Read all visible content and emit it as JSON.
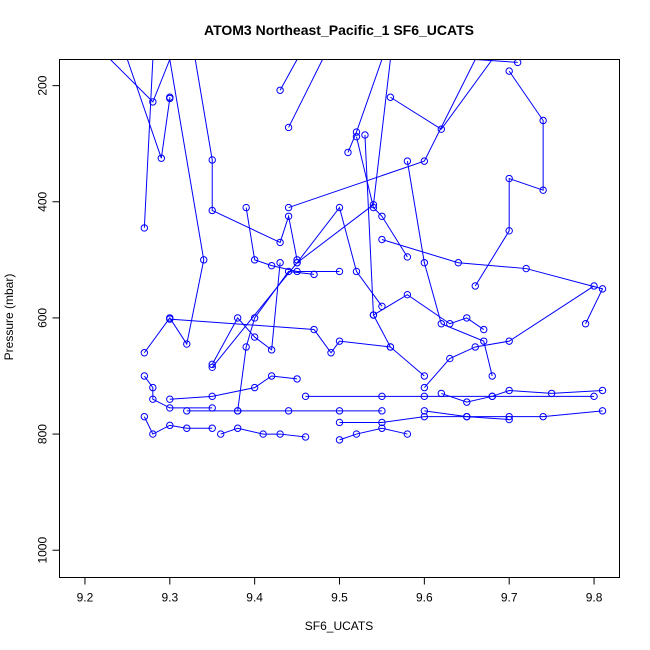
{
  "chart_data": {
    "type": "line",
    "title": "ATOM3 Northeast_Pacific_1 SF6_UCATS",
    "xlabel": "SF6_UCATS",
    "ylabel": "Pressure (mbar)",
    "xlim": [
      9.17,
      9.83
    ],
    "ylim": [
      1047,
      155
    ],
    "y_reversed": true,
    "x_ticks": [
      9.2,
      9.3,
      9.4,
      9.5,
      9.6,
      9.7,
      9.8
    ],
    "x_tick_labels": [
      "9.2",
      "9.3",
      "9.4",
      "9.5",
      "9.6",
      "9.7",
      "9.8"
    ],
    "y_ticks": [
      200,
      400,
      600,
      800,
      1000
    ],
    "y_tick_labels": [
      "200",
      "400",
      "600",
      "800",
      "1000"
    ],
    "grid": false,
    "legend": "none",
    "color": "#0000ff",
    "series": [
      {
        "points": [
          [
            9.23,
            155
          ],
          [
            9.28,
            228
          ],
          [
            9.3,
            155
          ]
        ]
      },
      {
        "points": [
          [
            9.25,
            155
          ],
          [
            9.29,
            325
          ],
          [
            9.3,
            222
          ],
          [
            9.3,
            220
          ]
        ]
      },
      {
        "points": [
          [
            9.27,
            445
          ],
          [
            9.28,
            155
          ]
        ]
      },
      {
        "points": [
          [
            9.33,
            155
          ],
          [
            9.35,
            328
          ],
          [
            9.35,
            415
          ],
          [
            9.43,
            470
          ],
          [
            9.44,
            425
          ],
          [
            9.45,
            500
          ]
        ]
      },
      {
        "points": [
          [
            9.27,
            660
          ],
          [
            9.3,
            600
          ],
          [
            9.32,
            645
          ],
          [
            9.34,
            500
          ],
          [
            9.3,
            155
          ]
        ]
      },
      {
        "points": [
          [
            9.27,
            700
          ],
          [
            9.28,
            720
          ],
          [
            9.28,
            740
          ],
          [
            9.3,
            755
          ],
          [
            9.35,
            755
          ]
        ]
      },
      {
        "points": [
          [
            9.27,
            770
          ],
          [
            9.28,
            800
          ],
          [
            9.3,
            785
          ],
          [
            9.32,
            790
          ],
          [
            9.35,
            790
          ]
        ]
      },
      {
        "points": [
          [
            9.3,
            602
          ],
          [
            9.47,
            620
          ],
          [
            9.49,
            660
          ],
          [
            9.5,
            640
          ],
          [
            9.56,
            650
          ]
        ]
      },
      {
        "points": [
          [
            9.35,
            680
          ],
          [
            9.38,
            600
          ],
          [
            9.4,
            633
          ],
          [
            9.42,
            655
          ],
          [
            9.43,
            505
          ]
        ]
      },
      {
        "points": [
          [
            9.35,
            685
          ],
          [
            9.45,
            505
          ],
          [
            9.5,
            410
          ],
          [
            9.52,
            520
          ],
          [
            9.55,
            580
          ]
        ]
      },
      {
        "points": [
          [
            9.3,
            740
          ],
          [
            9.35,
            735
          ],
          [
            9.4,
            720
          ],
          [
            9.42,
            700
          ],
          [
            9.45,
            705
          ]
        ]
      },
      {
        "points": [
          [
            9.32,
            760
          ],
          [
            9.38,
            760
          ],
          [
            9.44,
            760
          ],
          [
            9.5,
            760
          ],
          [
            9.55,
            760
          ]
        ]
      },
      {
        "points": [
          [
            9.36,
            800
          ],
          [
            9.38,
            790
          ],
          [
            9.41,
            800
          ],
          [
            9.43,
            800
          ],
          [
            9.46,
            805
          ]
        ]
      },
      {
        "points": [
          [
            9.38,
            760
          ],
          [
            9.39,
            650
          ],
          [
            9.4,
            600
          ],
          [
            9.44,
            520
          ],
          [
            9.47,
            525
          ]
        ]
      },
      {
        "points": [
          [
            9.39,
            410
          ],
          [
            9.4,
            500
          ],
          [
            9.42,
            510
          ],
          [
            9.45,
            520
          ],
          [
            9.5,
            520
          ]
        ]
      },
      {
        "points": [
          [
            9.43,
            208
          ],
          [
            9.45,
            155
          ]
        ]
      },
      {
        "points": [
          [
            9.44,
            272
          ],
          [
            9.48,
            155
          ]
        ]
      },
      {
        "points": [
          [
            9.44,
            410
          ],
          [
            9.6,
            330
          ],
          [
            9.66,
            155
          ],
          [
            9.71,
            160
          ]
        ]
      },
      {
        "points": [
          [
            9.45,
            505
          ],
          [
            9.54,
            405
          ],
          [
            9.56,
            155
          ],
          [
            9.58,
            155
          ]
        ]
      },
      {
        "points": [
          [
            9.46,
            735
          ],
          [
            9.55,
            735
          ],
          [
            9.6,
            735
          ],
          [
            9.68,
            735
          ],
          [
            9.8,
            735
          ]
        ]
      },
      {
        "points": [
          [
            9.5,
            810
          ],
          [
            9.52,
            800
          ],
          [
            9.55,
            790
          ],
          [
            9.58,
            800
          ]
        ]
      },
      {
        "points": [
          [
            9.5,
            780
          ],
          [
            9.55,
            780
          ],
          [
            9.6,
            770
          ],
          [
            9.65,
            770
          ],
          [
            9.7,
            775
          ]
        ]
      },
      {
        "points": [
          [
            9.51,
            315
          ],
          [
            9.52,
            280
          ],
          [
            9.55,
            155
          ],
          [
            9.6,
            155
          ]
        ]
      },
      {
        "points": [
          [
            9.52,
            288
          ],
          [
            9.54,
            410
          ],
          [
            9.55,
            425
          ],
          [
            9.58,
            495
          ]
        ]
      },
      {
        "points": [
          [
            9.53,
            285
          ],
          [
            9.54,
            595
          ],
          [
            9.56,
            650
          ],
          [
            9.6,
            700
          ]
        ]
      },
      {
        "points": [
          [
            9.54,
            595
          ],
          [
            9.58,
            560
          ],
          [
            9.63,
            610
          ],
          [
            9.65,
            600
          ],
          [
            9.67,
            620
          ]
        ]
      },
      {
        "points": [
          [
            9.55,
            465
          ],
          [
            9.64,
            505
          ],
          [
            9.72,
            515
          ],
          [
            9.81,
            550
          ],
          [
            9.79,
            610
          ]
        ]
      },
      {
        "points": [
          [
            9.56,
            220
          ],
          [
            9.62,
            275
          ],
          [
            9.68,
            155
          ]
        ]
      },
      {
        "points": [
          [
            9.58,
            330
          ],
          [
            9.6,
            505
          ],
          [
            9.62,
            610
          ],
          [
            9.67,
            640
          ],
          [
            9.68,
            700
          ]
        ]
      },
      {
        "points": [
          [
            9.6,
            760
          ],
          [
            9.65,
            770
          ],
          [
            9.7,
            770
          ],
          [
            9.74,
            770
          ],
          [
            9.81,
            760
          ]
        ]
      },
      {
        "points": [
          [
            9.66,
            545
          ],
          [
            9.7,
            450
          ],
          [
            9.7,
            360
          ],
          [
            9.74,
            380
          ],
          [
            9.74,
            260
          ],
          [
            9.7,
            175
          ]
        ]
      },
      {
        "points": [
          [
            9.62,
            730
          ],
          [
            9.65,
            745
          ],
          [
            9.68,
            735
          ],
          [
            9.7,
            725
          ],
          [
            9.75,
            730
          ],
          [
            9.81,
            725
          ]
        ]
      },
      {
        "points": [
          [
            9.6,
            720
          ],
          [
            9.63,
            670
          ],
          [
            9.66,
            650
          ],
          [
            9.7,
            640
          ],
          [
            9.8,
            545
          ]
        ]
      }
    ]
  }
}
